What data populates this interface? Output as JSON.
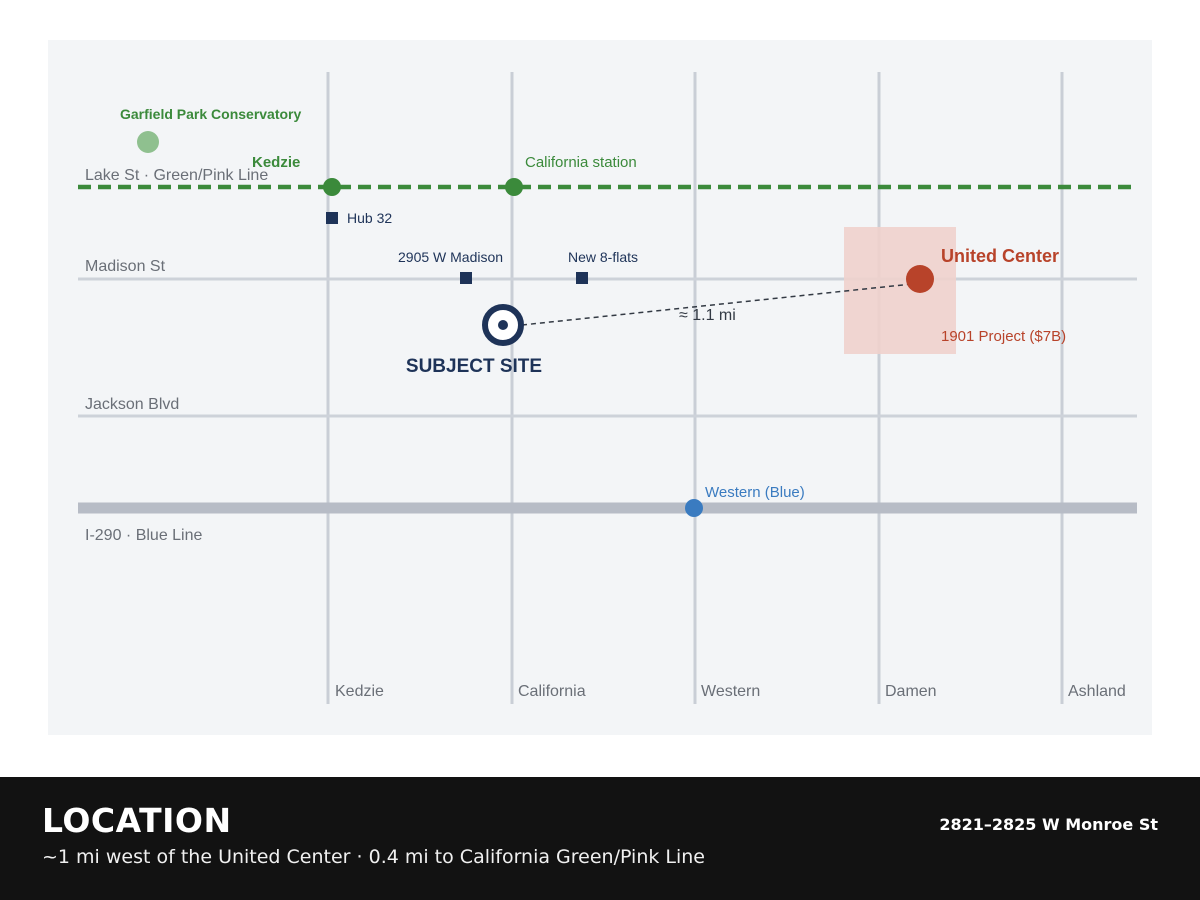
{
  "map": {
    "streets_ns": [
      {
        "id": "kedzie",
        "label": "Kedzie"
      },
      {
        "id": "california",
        "label": "California"
      },
      {
        "id": "western",
        "label": "Western"
      },
      {
        "id": "damen",
        "label": "Damen"
      },
      {
        "id": "ashland",
        "label": "Ashland"
      }
    ],
    "streets_ew": [
      {
        "id": "lake",
        "label": "Lake St · Green/Pink Line"
      },
      {
        "id": "madison",
        "label": "Madison St"
      },
      {
        "id": "jackson",
        "label": "Jackson Blvd"
      },
      {
        "id": "i290",
        "label": "I-290 · Blue Line"
      }
    ],
    "poi": {
      "garfield": "Garfield Park Conservatory",
      "kedzie_station": "Kedzie",
      "california_station": "California station",
      "hub32": "Hub 32",
      "madison_2905": "2905 W Madison",
      "eight_flats": "New 8-flats",
      "subject_site": "SUBJECT SITE",
      "distance": "≈ 1.1 mi",
      "united_center": "United Center",
      "project_1901": "1901 Project ($7B)",
      "western_blue": "Western (Blue)"
    },
    "colors": {
      "green_line": "#3b8a3b",
      "blue_line": "#3a7bc0",
      "navy": "#1e3358",
      "united_center": "#b8432a",
      "united_center_zone": "#efd2cc",
      "highway": "#b7bcc6"
    }
  },
  "footer": {
    "title": "LOCATION",
    "subtitle": "~1 mi west of the United Center · 0.4 mi to California Green/Pink Line",
    "address": "2821–2825 W Monroe St"
  }
}
